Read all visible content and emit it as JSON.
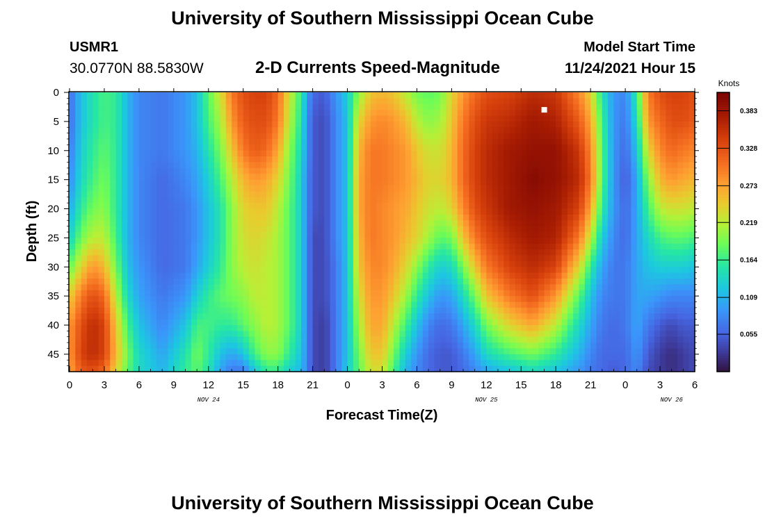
{
  "header": {
    "title": "University of Southern Mississippi Ocean Cube",
    "station_id": "USMR1",
    "station_coords": "30.0770N  88.5830W",
    "subtitle": "2-D Currents Speed-Magnitude",
    "start_label": "Model Start Time",
    "start_value": "11/24/2021 Hour 15"
  },
  "footer": {
    "title": "University of Southern Mississippi Ocean Cube"
  },
  "chart_data": {
    "type": "heatmap",
    "xlabel": "Forecast Time(Z)",
    "ylabel": "Depth (ft)",
    "x_range_hours": [
      0,
      54
    ],
    "y_range_ft": [
      0,
      48
    ],
    "x_ticks": [
      "0",
      "3",
      "6",
      "9",
      "12",
      "15",
      "18",
      "21",
      "0",
      "3",
      "6",
      "9",
      "12",
      "15",
      "18",
      "21",
      "0",
      "3",
      "6"
    ],
    "y_ticks": [
      "0",
      "5",
      "10",
      "15",
      "20",
      "25",
      "30",
      "35",
      "40",
      "45"
    ],
    "date_labels": [
      {
        "label": "NOV 24",
        "hour": 12
      },
      {
        "label": "NOV 25",
        "hour": 36
      },
      {
        "label": "NOV 26",
        "hour": 52
      }
    ],
    "colorbar": {
      "title": "Knots",
      "min": 0.0,
      "max": 0.41,
      "ticks": [
        "0.383",
        "0.328",
        "0.273",
        "0.219",
        "0.164",
        "0.109",
        "0.055"
      ],
      "tick_values": [
        0.383,
        0.328,
        0.273,
        0.219,
        0.164,
        0.109,
        0.055
      ]
    },
    "marker": {
      "hour": 41,
      "depth_ft": 3
    },
    "depths_ft": [
      0,
      5,
      10,
      15,
      20,
      25,
      30,
      35,
      40,
      45,
      48
    ],
    "speed_columns_knots": [
      {
        "hour": 0,
        "speeds": [
          0.06,
          0.06,
          0.07,
          0.08,
          0.1,
          0.13,
          0.18,
          0.24,
          0.28,
          0.28,
          0.27
        ]
      },
      {
        "hour": 1,
        "speeds": [
          0.12,
          0.12,
          0.13,
          0.14,
          0.16,
          0.19,
          0.24,
          0.3,
          0.33,
          0.34,
          0.32
        ]
      },
      {
        "hour": 2,
        "speeds": [
          0.15,
          0.15,
          0.16,
          0.17,
          0.19,
          0.22,
          0.28,
          0.33,
          0.36,
          0.36,
          0.33
        ]
      },
      {
        "hour": 3,
        "speeds": [
          0.17,
          0.17,
          0.18,
          0.19,
          0.2,
          0.22,
          0.26,
          0.31,
          0.34,
          0.34,
          0.31
        ]
      },
      {
        "hour": 4,
        "speeds": [
          0.16,
          0.16,
          0.16,
          0.16,
          0.16,
          0.17,
          0.19,
          0.22,
          0.25,
          0.26,
          0.24
        ]
      },
      {
        "hour": 5,
        "speeds": [
          0.11,
          0.11,
          0.11,
          0.11,
          0.11,
          0.11,
          0.12,
          0.14,
          0.17,
          0.19,
          0.18
        ]
      },
      {
        "hour": 6,
        "speeds": [
          0.08,
          0.08,
          0.08,
          0.08,
          0.08,
          0.08,
          0.09,
          0.1,
          0.12,
          0.14,
          0.14
        ]
      },
      {
        "hour": 8,
        "speeds": [
          0.07,
          0.07,
          0.07,
          0.06,
          0.06,
          0.06,
          0.06,
          0.07,
          0.08,
          0.1,
          0.11
        ]
      },
      {
        "hour": 10,
        "speeds": [
          0.09,
          0.09,
          0.09,
          0.08,
          0.07,
          0.07,
          0.07,
          0.09,
          0.12,
          0.15,
          0.16
        ]
      },
      {
        "hour": 11,
        "speeds": [
          0.12,
          0.12,
          0.11,
          0.1,
          0.09,
          0.09,
          0.1,
          0.13,
          0.17,
          0.19,
          0.18
        ]
      },
      {
        "hour": 12,
        "speeds": [
          0.18,
          0.17,
          0.15,
          0.13,
          0.12,
          0.12,
          0.13,
          0.16,
          0.17,
          0.16,
          0.15
        ]
      },
      {
        "hour": 13,
        "speeds": [
          0.23,
          0.21,
          0.19,
          0.17,
          0.15,
          0.15,
          0.16,
          0.18,
          0.16,
          0.12,
          0.1
        ]
      },
      {
        "hour": 14,
        "speeds": [
          0.3,
          0.28,
          0.25,
          0.22,
          0.2,
          0.2,
          0.2,
          0.19,
          0.16,
          0.1,
          0.07
        ]
      },
      {
        "hour": 15,
        "speeds": [
          0.33,
          0.32,
          0.3,
          0.26,
          0.24,
          0.23,
          0.22,
          0.2,
          0.18,
          0.12,
          0.07
        ]
      },
      {
        "hour": 16,
        "speeds": [
          0.34,
          0.33,
          0.32,
          0.28,
          0.25,
          0.24,
          0.23,
          0.22,
          0.2,
          0.17,
          0.12
        ]
      },
      {
        "hour": 17,
        "speeds": [
          0.34,
          0.33,
          0.31,
          0.27,
          0.25,
          0.23,
          0.22,
          0.22,
          0.22,
          0.2,
          0.16
        ]
      },
      {
        "hour": 18,
        "speeds": [
          0.31,
          0.3,
          0.27,
          0.24,
          0.22,
          0.21,
          0.21,
          0.21,
          0.21,
          0.2,
          0.16
        ]
      },
      {
        "hour": 19,
        "speeds": [
          0.23,
          0.22,
          0.2,
          0.19,
          0.18,
          0.18,
          0.18,
          0.18,
          0.18,
          0.16,
          0.13
        ]
      },
      {
        "hour": 20,
        "speeds": [
          0.16,
          0.15,
          0.14,
          0.13,
          0.13,
          0.13,
          0.13,
          0.13,
          0.13,
          0.12,
          0.11
        ]
      },
      {
        "hour": 20.5,
        "speeds": [
          0.1,
          0.09,
          0.09,
          0.08,
          0.08,
          0.08,
          0.08,
          0.08,
          0.08,
          0.08,
          0.08
        ]
      },
      {
        "hour": 21,
        "speeds": [
          0.06,
          0.05,
          0.05,
          0.05,
          0.05,
          0.04,
          0.04,
          0.04,
          0.04,
          0.04,
          0.04
        ]
      },
      {
        "hour": 22,
        "speeds": [
          0.05,
          0.04,
          0.04,
          0.04,
          0.04,
          0.04,
          0.04,
          0.04,
          0.03,
          0.03,
          0.03
        ]
      },
      {
        "hour": 23,
        "speeds": [
          0.09,
          0.08,
          0.08,
          0.08,
          0.08,
          0.08,
          0.07,
          0.07,
          0.07,
          0.07,
          0.07
        ]
      },
      {
        "hour": 24,
        "speeds": [
          0.13,
          0.12,
          0.12,
          0.12,
          0.12,
          0.12,
          0.12,
          0.12,
          0.12,
          0.12,
          0.13
        ]
      },
      {
        "hour": 25,
        "speeds": [
          0.2,
          0.24,
          0.26,
          0.27,
          0.27,
          0.26,
          0.25,
          0.23,
          0.21,
          0.19,
          0.18
        ]
      },
      {
        "hour": 26,
        "speeds": [
          0.25,
          0.28,
          0.3,
          0.3,
          0.3,
          0.3,
          0.29,
          0.28,
          0.27,
          0.25,
          0.23
        ]
      },
      {
        "hour": 27,
        "speeds": [
          0.26,
          0.29,
          0.3,
          0.3,
          0.29,
          0.29,
          0.29,
          0.28,
          0.27,
          0.25,
          0.23
        ]
      },
      {
        "hour": 28,
        "speeds": [
          0.25,
          0.28,
          0.29,
          0.29,
          0.28,
          0.28,
          0.27,
          0.25,
          0.22,
          0.19,
          0.17
        ]
      },
      {
        "hour": 29,
        "speeds": [
          0.22,
          0.26,
          0.28,
          0.28,
          0.27,
          0.26,
          0.24,
          0.21,
          0.17,
          0.13,
          0.11
        ]
      },
      {
        "hour": 30,
        "speeds": [
          0.19,
          0.22,
          0.25,
          0.26,
          0.25,
          0.24,
          0.2,
          0.16,
          0.12,
          0.09,
          0.08
        ]
      },
      {
        "hour": 31,
        "speeds": [
          0.18,
          0.2,
          0.23,
          0.24,
          0.23,
          0.21,
          0.16,
          0.12,
          0.08,
          0.06,
          0.06
        ]
      },
      {
        "hour": 32,
        "speeds": [
          0.19,
          0.21,
          0.23,
          0.24,
          0.22,
          0.18,
          0.13,
          0.09,
          0.06,
          0.05,
          0.05
        ]
      },
      {
        "hour": 33,
        "speeds": [
          0.24,
          0.25,
          0.26,
          0.26,
          0.24,
          0.19,
          0.14,
          0.1,
          0.07,
          0.05,
          0.05
        ]
      },
      {
        "hour": 34,
        "speeds": [
          0.28,
          0.3,
          0.31,
          0.31,
          0.29,
          0.25,
          0.19,
          0.14,
          0.1,
          0.07,
          0.06
        ]
      },
      {
        "hour": 35,
        "speeds": [
          0.31,
          0.33,
          0.34,
          0.34,
          0.33,
          0.3,
          0.25,
          0.19,
          0.14,
          0.1,
          0.08
        ]
      },
      {
        "hour": 36,
        "speeds": [
          0.33,
          0.35,
          0.36,
          0.36,
          0.35,
          0.33,
          0.3,
          0.25,
          0.19,
          0.14,
          0.1
        ]
      },
      {
        "hour": 38,
        "speeds": [
          0.34,
          0.36,
          0.38,
          0.38,
          0.38,
          0.36,
          0.34,
          0.3,
          0.24,
          0.17,
          0.12
        ]
      },
      {
        "hour": 40,
        "speeds": [
          0.36,
          0.38,
          0.39,
          0.4,
          0.39,
          0.38,
          0.36,
          0.33,
          0.27,
          0.19,
          0.14
        ]
      },
      {
        "hour": 42,
        "speeds": [
          0.35,
          0.37,
          0.39,
          0.39,
          0.38,
          0.37,
          0.34,
          0.28,
          0.22,
          0.16,
          0.12
        ]
      },
      {
        "hour": 44,
        "speeds": [
          0.29,
          0.32,
          0.35,
          0.36,
          0.34,
          0.3,
          0.24,
          0.18,
          0.14,
          0.11,
          0.09
        ]
      },
      {
        "hour": 45,
        "speeds": [
          0.24,
          0.27,
          0.29,
          0.3,
          0.27,
          0.22,
          0.16,
          0.12,
          0.1,
          0.08,
          0.07
        ]
      },
      {
        "hour": 46,
        "speeds": [
          0.15,
          0.17,
          0.18,
          0.18,
          0.16,
          0.13,
          0.1,
          0.08,
          0.07,
          0.06,
          0.06
        ]
      },
      {
        "hour": 47,
        "speeds": [
          0.09,
          0.09,
          0.09,
          0.09,
          0.09,
          0.08,
          0.07,
          0.07,
          0.06,
          0.06,
          0.05
        ]
      },
      {
        "hour": 48,
        "speeds": [
          0.08,
          0.07,
          0.06,
          0.05,
          0.06,
          0.06,
          0.07,
          0.07,
          0.07,
          0.06,
          0.06
        ]
      },
      {
        "hour": 49,
        "speeds": [
          0.16,
          0.14,
          0.12,
          0.1,
          0.1,
          0.1,
          0.1,
          0.1,
          0.1,
          0.09,
          0.08
        ]
      },
      {
        "hour": 50,
        "speeds": [
          0.3,
          0.28,
          0.24,
          0.2,
          0.17,
          0.14,
          0.12,
          0.1,
          0.07,
          0.05,
          0.04
        ]
      },
      {
        "hour": 51,
        "speeds": [
          0.33,
          0.31,
          0.29,
          0.26,
          0.22,
          0.17,
          0.13,
          0.09,
          0.05,
          0.03,
          0.03
        ]
      },
      {
        "hour": 52,
        "speeds": [
          0.34,
          0.33,
          0.31,
          0.28,
          0.23,
          0.18,
          0.13,
          0.08,
          0.04,
          0.02,
          0.02
        ]
      },
      {
        "hour": 53,
        "speeds": [
          0.34,
          0.33,
          0.3,
          0.27,
          0.23,
          0.18,
          0.13,
          0.08,
          0.05,
          0.03,
          0.03
        ]
      },
      {
        "hour": 54,
        "speeds": [
          0.33,
          0.32,
          0.29,
          0.26,
          0.22,
          0.17,
          0.12,
          0.08,
          0.05,
          0.04,
          0.04
        ]
      }
    ]
  }
}
